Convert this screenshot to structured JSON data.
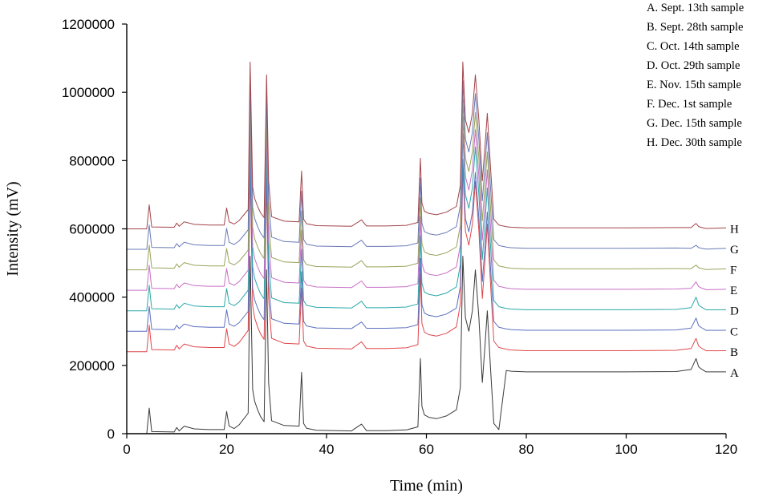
{
  "chart_data": {
    "type": "line",
    "title": "",
    "xlabel": "Time (min)",
    "ylabel": "Intensity (mV)",
    "xlim": [
      0,
      120
    ],
    "ylim": [
      0,
      1200000
    ],
    "x_ticks": [
      0,
      20,
      40,
      60,
      80,
      100,
      120
    ],
    "y_ticks": [
      0,
      200000,
      400000,
      600000,
      800000,
      1000000,
      1200000
    ],
    "x_tick_labels": [
      "0",
      "20",
      "40",
      "60",
      "80",
      "100",
      "120"
    ],
    "y_tick_labels": [
      "0",
      "200000",
      "400000",
      "600000",
      "800000",
      "1000000",
      "1200000"
    ],
    "grid": false,
    "legend_position": "top-right",
    "legend": [
      "A. Sept. 13th sample",
      "B. Sept. 28th sample",
      "C. Oct. 14th sample",
      "D. Oct. 29th sample",
      "E. Nov. 15th sample",
      "F. Dec. 1st sample",
      "G. Dec. 15th sample",
      "H. Dec. 30th sample"
    ],
    "baseline": {
      "x": [
        0,
        4,
        4.5,
        5,
        9.5,
        10,
        10.5,
        11.5,
        13.5,
        16.5,
        19.5,
        20,
        20.5,
        21.5,
        22.5,
        24.3,
        24.7,
        25.2,
        25.6,
        26.2,
        26.8,
        27.5,
        28,
        28.4,
        29,
        31.5,
        34.5,
        35,
        35.4,
        36,
        38,
        45,
        47,
        48,
        52,
        56,
        58.3,
        58.8,
        59.1,
        59.6,
        60.5,
        62,
        64,
        66,
        66.8,
        67.3,
        67.8,
        68.5,
        69.2,
        69.8,
        70.5,
        71.2,
        71.7,
        72.2,
        72.8,
        73.5,
        74.5,
        76,
        77,
        80,
        100,
        110,
        113,
        114,
        114.5,
        115,
        116,
        120
      ],
      "y": [
        0,
        0,
        75000,
        6000,
        5000,
        18000,
        8000,
        22000,
        14000,
        12000,
        12000,
        65000,
        22000,
        15000,
        26000,
        60000,
        520000,
        130000,
        95000,
        70000,
        50000,
        35000,
        480000,
        150000,
        38000,
        24000,
        22000,
        180000,
        30000,
        16000,
        10000,
        8000,
        28000,
        9000,
        9000,
        11000,
        20000,
        220000,
        80000,
        55000,
        48000,
        44000,
        52000,
        70000,
        135000,
        520000,
        340000,
        300000,
        360000,
        480000,
        340000,
        150000,
        250000,
        360000,
        200000,
        30000,
        12000,
        7000,
        5000,
        3000,
        3000,
        4000,
        10000,
        42000,
        18000,
        12000,
        3000,
        3000
      ]
    },
    "series": [
      {
        "name": "A",
        "offset": 178000,
        "scale": 1.0,
        "late_peak": 1.0
      },
      {
        "name": "B",
        "offset": 240000,
        "scale": 1.04,
        "late_peak": 0.9
      },
      {
        "name": "C",
        "offset": 300000,
        "scale": 0.97,
        "late_peak": 0.95
      },
      {
        "name": "D",
        "offset": 360000,
        "scale": 1.0,
        "late_peak": 0.95
      },
      {
        "name": "E",
        "offset": 420000,
        "scale": 0.98,
        "late_peak": 0.6
      },
      {
        "name": "F",
        "offset": 480000,
        "scale": 0.96,
        "late_peak": 0.35
      },
      {
        "name": "G",
        "offset": 540000,
        "scale": 0.95,
        "late_peak": 0.3
      },
      {
        "name": "H",
        "offset": 600000,
        "scale": 0.94,
        "late_peak": 0.4
      }
    ],
    "series_colors": [
      "#3a3a3a",
      "#e0474c",
      "#5a6fc0",
      "#2aa7a7",
      "#c86fc6",
      "#9aa35a",
      "#6a7ab8",
      "#a3444a"
    ]
  }
}
